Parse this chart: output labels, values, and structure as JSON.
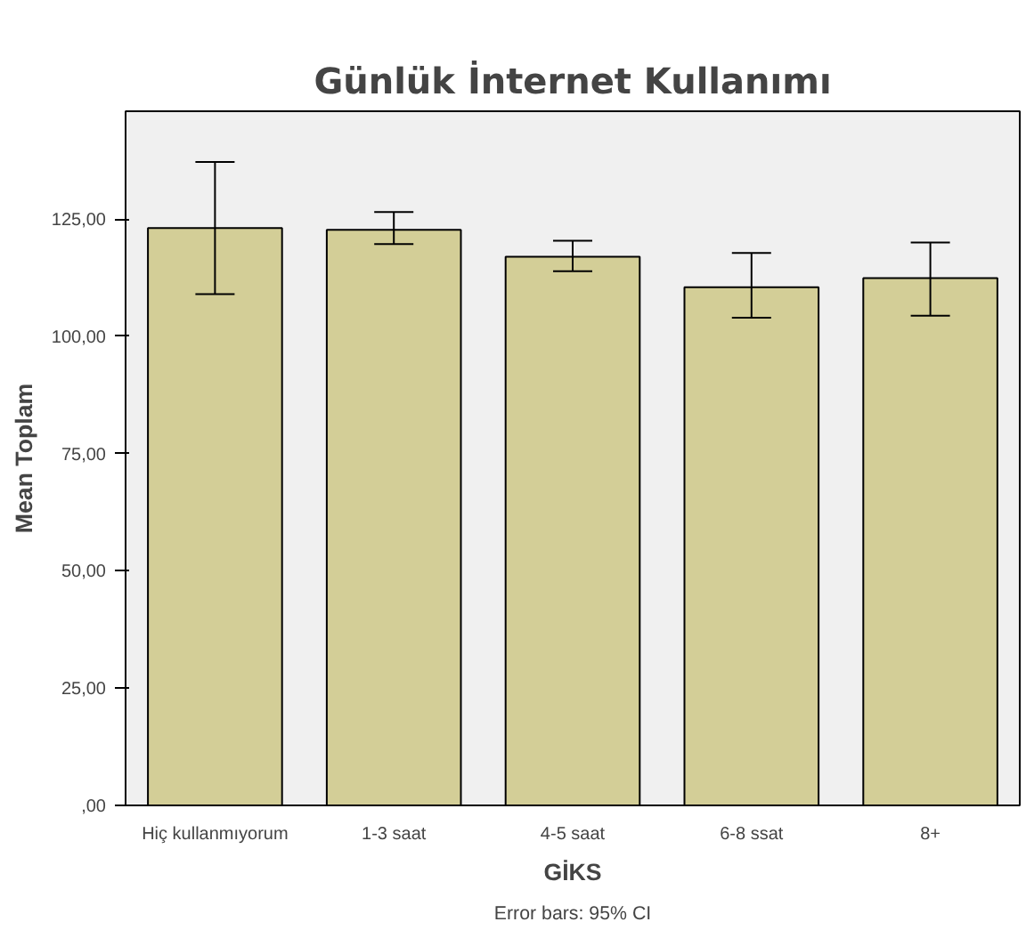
{
  "chart_data": {
    "type": "bar",
    "title": "Günlük İnternet Kullanımı",
    "xlabel": "GİKS",
    "ylabel": "Mean Toplam",
    "categories": [
      "Hiç kullanmıyorum",
      "1-3 saat",
      "4-5 saat",
      "6-8 ssat",
      "8+"
    ],
    "values": [
      123.1,
      122.7,
      117.0,
      110.5,
      112.4
    ],
    "errors": [
      [
        109.0,
        137.2
      ],
      [
        119.7,
        126.5
      ],
      [
        113.9,
        120.4
      ],
      [
        104.0,
        117.8
      ],
      [
        104.4,
        120.0
      ]
    ],
    "color": "#d3ce97",
    "ylim": [
      0,
      148
    ],
    "yticks": [
      {
        "value": 0,
        "label": ",00"
      },
      {
        "value": 25,
        "label": "25,00"
      },
      {
        "value": 50,
        "label": "50,00"
      },
      {
        "value": 75,
        "label": "75,00"
      },
      {
        "value": 100,
        "label": "100,00"
      },
      {
        "value": 125,
        "label": "125,00"
      }
    ],
    "grid": false,
    "annotations": [
      "Error bars: 95% CI"
    ]
  }
}
